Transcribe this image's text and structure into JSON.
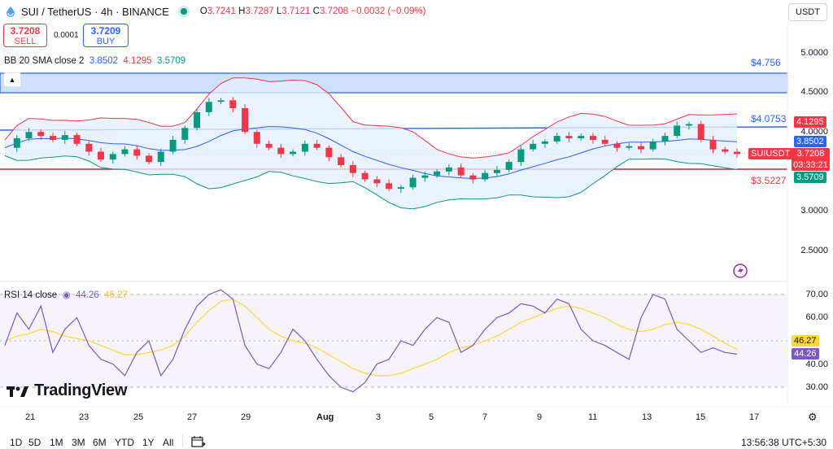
{
  "header": {
    "title": "SUI / TetherUS · 4h · BINANCE",
    "ohlc": {
      "o_label": "O",
      "o": "3.7241",
      "h_label": "H",
      "h": "3.7287",
      "l_label": "L",
      "l": "3.7121",
      "c_label": "C",
      "c": "3.7208",
      "change": "−0.0032 (−0.09%)"
    }
  },
  "trade": {
    "sell_price": "3.7208",
    "sell_label": "SELL",
    "spread": "0.0001",
    "buy_price": "3.7209",
    "buy_label": "BUY"
  },
  "indicators": {
    "bb": {
      "name": "BB 20 SMA close 2",
      "basis": "3.8502",
      "upper": "4.1295",
      "lower": "3.5709"
    },
    "rsi": {
      "name": "RSI 14 close",
      "value": "44.26",
      "ma": "46.27"
    }
  },
  "currency_button": "USDT",
  "price_axis": [
    "5.0000",
    "4.5000",
    "4.0000",
    "3.0000",
    "2.5000"
  ],
  "rsi_axis": [
    "70.00",
    "60.00",
    "40.00",
    "30.00"
  ],
  "levels": {
    "high": "$4.756",
    "mid": "$4.0753",
    "low": "$3.5227"
  },
  "tags": {
    "upper": "4.1295",
    "basis": "3.8502",
    "symbol": "SUIUSDT",
    "last": "3.7208",
    "countdown": "03:33:21",
    "lower": "3.5709",
    "rsi_ma": "46.27",
    "rsi": "44.26"
  },
  "x_axis": [
    "21",
    "23",
    "25",
    "27",
    "29",
    "Aug",
    "3",
    "5",
    "7",
    "9",
    "11",
    "13",
    "15",
    "17"
  ],
  "timeframes": [
    "1D",
    "5D",
    "1M",
    "3M",
    "6M",
    "YTD",
    "1Y",
    "All"
  ],
  "clock": "13:56:38 UTC+5:30",
  "watermark": "TradingView",
  "colors": {
    "up": "#089981",
    "down": "#f23645",
    "basis": "#2962ff",
    "rsi": "#7e57c2",
    "rsi_ma": "#fdd835",
    "band_fill": "#e3effd"
  },
  "chart_data": {
    "type": "candlestick",
    "timeframe": "4h",
    "y_range": [
      2.3,
      5.25
    ],
    "close_series": [
      3.8,
      3.92,
      4.0,
      3.95,
      3.9,
      3.96,
      3.85,
      3.75,
      3.65,
      3.72,
      3.78,
      3.7,
      3.62,
      3.75,
      3.9,
      4.05,
      4.25,
      4.38,
      4.4,
      4.3,
      4.0,
      3.85,
      3.8,
      3.72,
      3.75,
      3.85,
      3.8,
      3.68,
      3.58,
      3.48,
      3.4,
      3.35,
      3.28,
      3.3,
      3.42,
      3.45,
      3.5,
      3.55,
      3.45,
      3.4,
      3.48,
      3.52,
      3.62,
      3.78,
      3.85,
      3.88,
      3.95,
      3.92,
      3.95,
      3.9,
      3.85,
      3.8,
      3.82,
      3.78,
      3.88,
      3.95,
      4.08,
      4.1,
      3.9,
      3.78,
      3.75,
      3.72
    ],
    "rsi_series": [
      48,
      62,
      55,
      65,
      45,
      55,
      60,
      48,
      42,
      40,
      35,
      45,
      50,
      35,
      42,
      55,
      65,
      70,
      72,
      68,
      48,
      40,
      38,
      45,
      55,
      50,
      42,
      35,
      30,
      28,
      32,
      40,
      42,
      50,
      48,
      55,
      60,
      58,
      45,
      48,
      55,
      60,
      62,
      66,
      65,
      62,
      68,
      66,
      55,
      50,
      48,
      45,
      42,
      60,
      70,
      68,
      55,
      50,
      45,
      47,
      45,
      44.26
    ],
    "rsi_ma_series": [
      50,
      52,
      53,
      55,
      54,
      52,
      51,
      50,
      48,
      46,
      44,
      44,
      45,
      46,
      48,
      52,
      58,
      63,
      67,
      68,
      65,
      60,
      55,
      52,
      50,
      49,
      47,
      44,
      41,
      38,
      36,
      35,
      35,
      36,
      38,
      40,
      42,
      45,
      47,
      48,
      50,
      52,
      55,
      58,
      60,
      62,
      64,
      65,
      64,
      62,
      60,
      57,
      55,
      54,
      55,
      57,
      58,
      57,
      55,
      52,
      49,
      46.27
    ]
  }
}
